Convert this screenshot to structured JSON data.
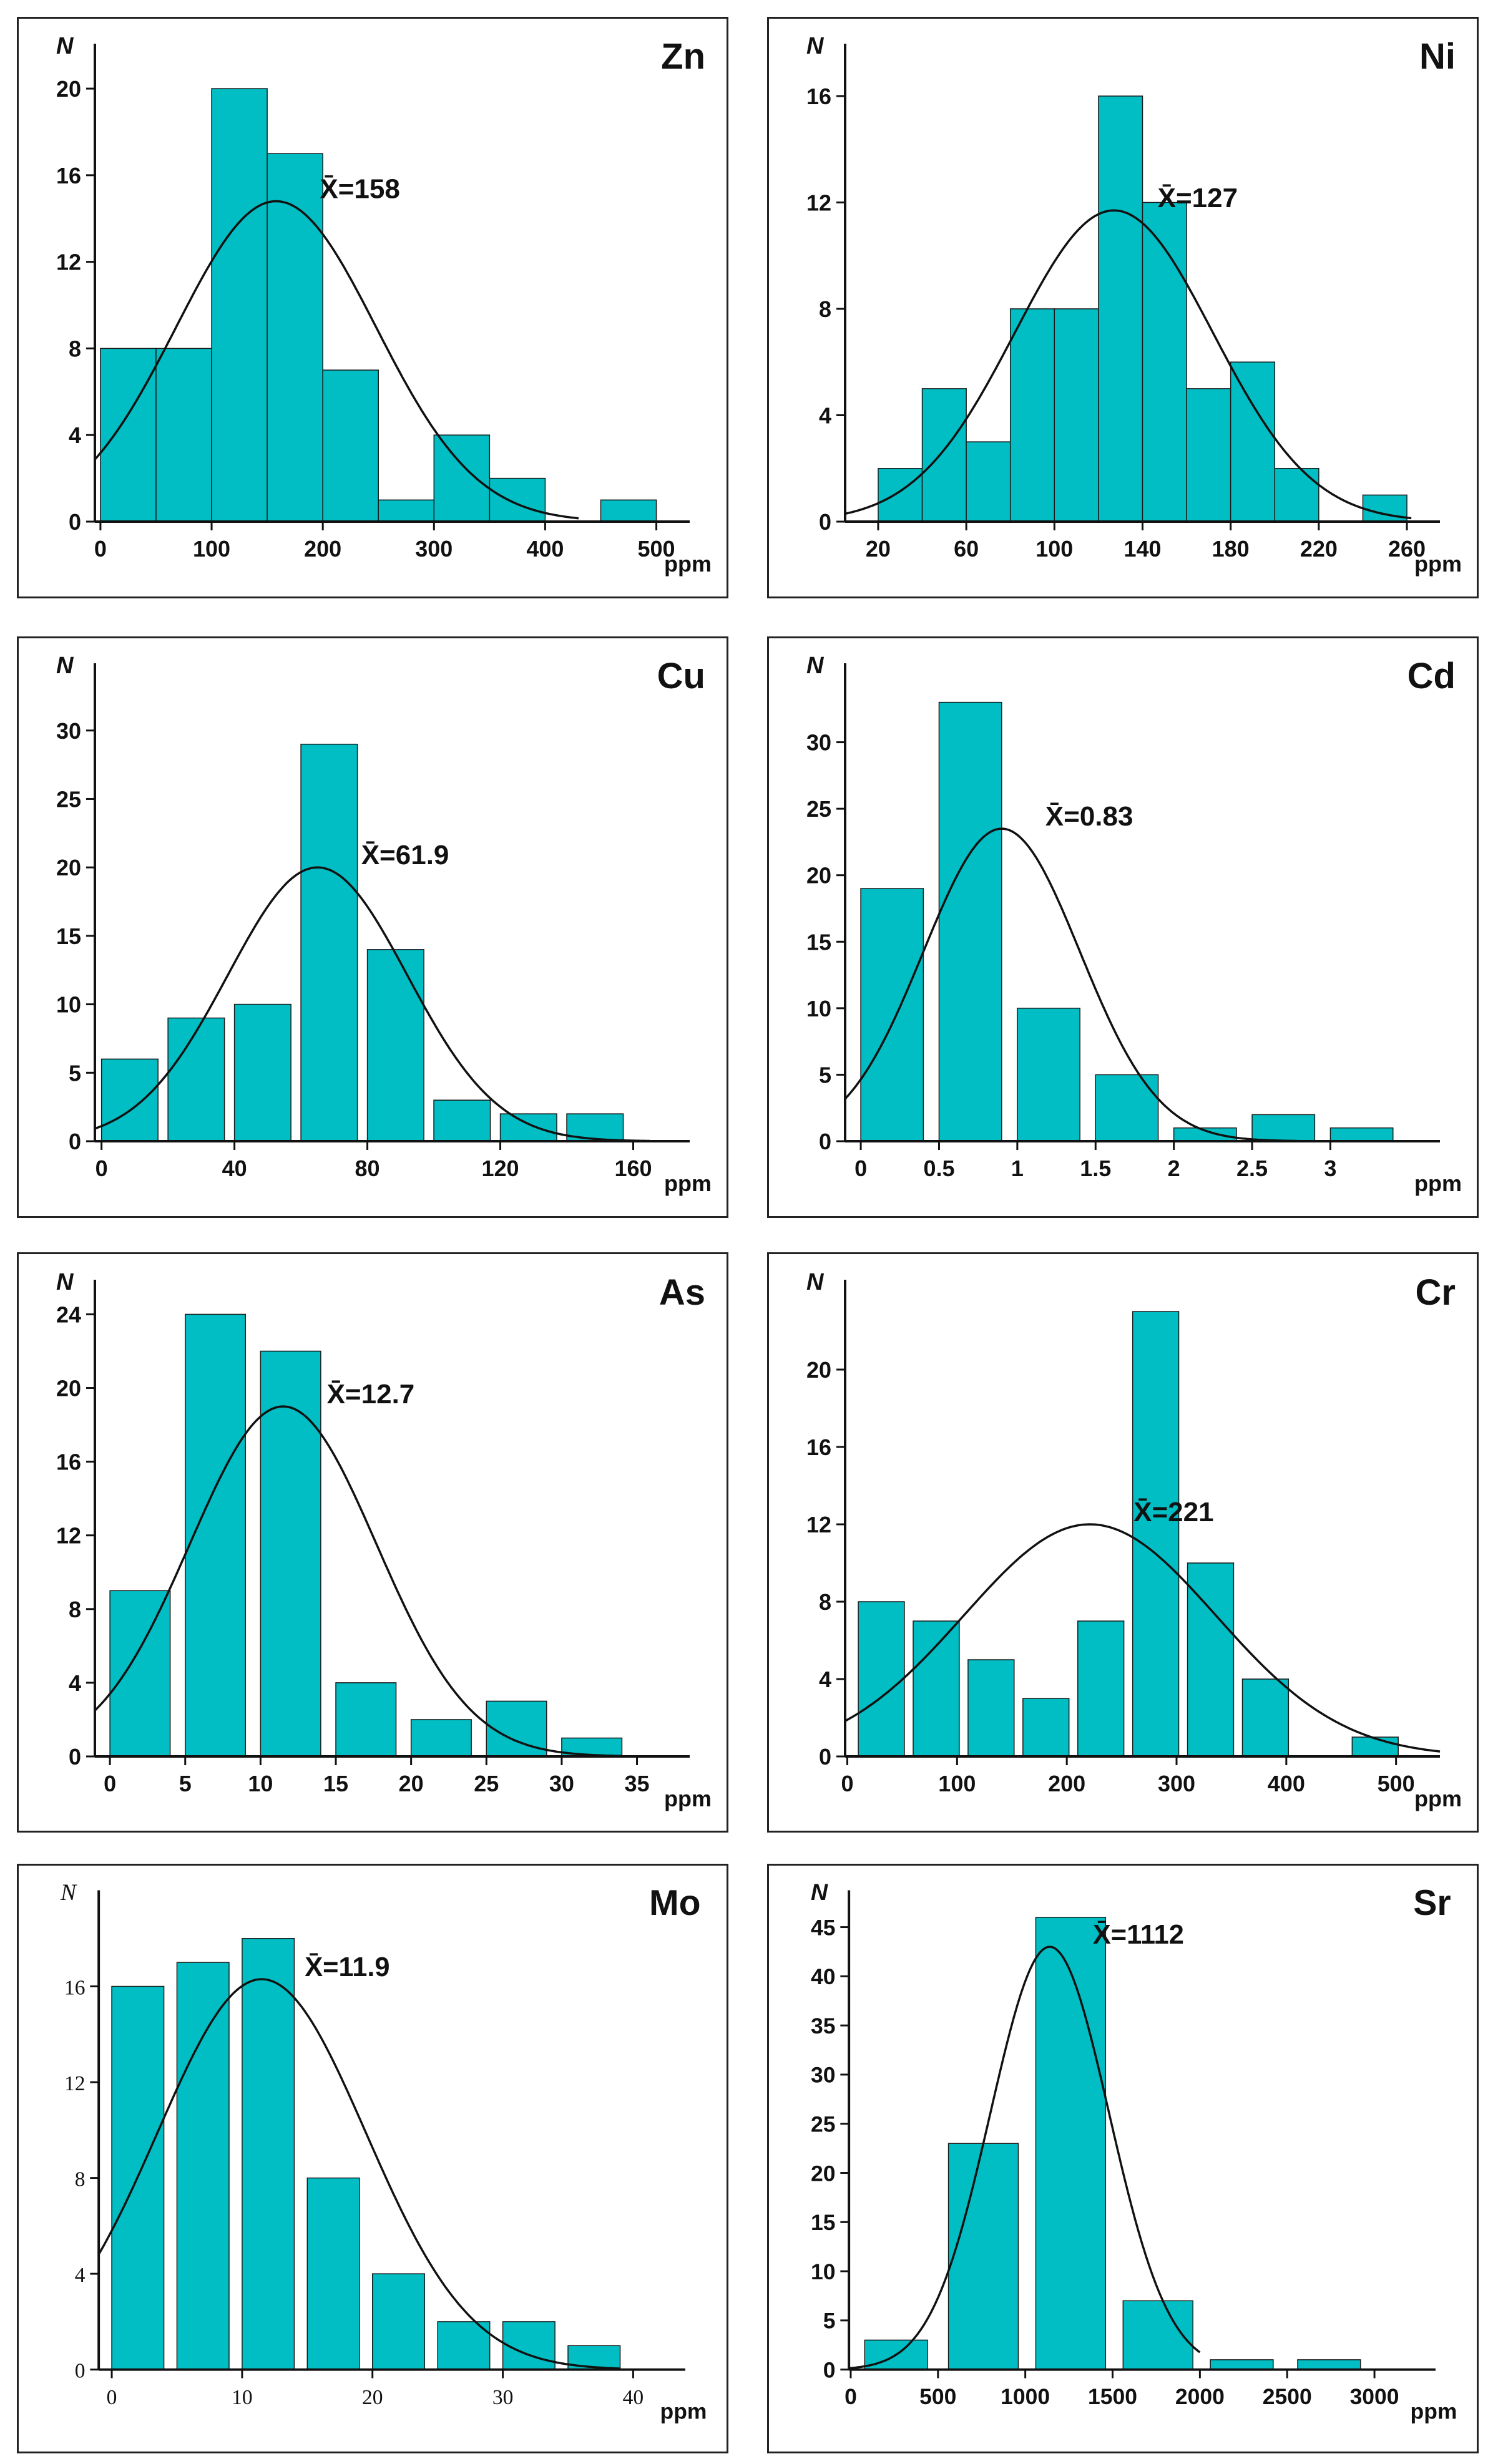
{
  "colors": {
    "bar": "#00BEC3",
    "bar_stroke": "#1a1a1a",
    "axis": "#111111",
    "curve": "#111111"
  },
  "chart_data": [
    {
      "type": "bar",
      "element": "Zn",
      "ylabel": "N",
      "xlabel": "ppm",
      "mean_label": "X̄=158",
      "xlim": [
        -5,
        530
      ],
      "ylim": [
        0,
        21.5
      ],
      "xticks": [
        0,
        100,
        200,
        300,
        400,
        500
      ],
      "yticks": [
        0,
        4,
        8,
        12,
        16,
        20
      ],
      "bins": [
        [
          0,
          50,
          8
        ],
        [
          50,
          100,
          8
        ],
        [
          100,
          150,
          20
        ],
        [
          150,
          200,
          17
        ],
        [
          200,
          250,
          7
        ],
        [
          250,
          300,
          1
        ],
        [
          300,
          350,
          4
        ],
        [
          350,
          400,
          2
        ],
        [
          450,
          500,
          1
        ]
      ],
      "curve": {
        "mean": 158,
        "sd": 90,
        "peak": 14.8,
        "range": [
          -5,
          430
        ]
      }
    },
    {
      "type": "bar",
      "element": "Ni",
      "ylabel": "N",
      "xlabel": "ppm",
      "mean_label": "X̄=127",
      "xlim": [
        5,
        275
      ],
      "ylim": [
        0,
        17.5
      ],
      "xticks": [
        20,
        60,
        100,
        140,
        180,
        220,
        260
      ],
      "yticks": [
        0,
        4,
        8,
        12,
        16
      ],
      "bins": [
        [
          20,
          40,
          2
        ],
        [
          40,
          60,
          5
        ],
        [
          60,
          80,
          3
        ],
        [
          80,
          100,
          8
        ],
        [
          100,
          120,
          8
        ],
        [
          120,
          140,
          16
        ],
        [
          140,
          160,
          12
        ],
        [
          160,
          180,
          5
        ],
        [
          180,
          200,
          6
        ],
        [
          200,
          220,
          2
        ],
        [
          240,
          260,
          1
        ]
      ],
      "curve": {
        "mean": 127,
        "sd": 45,
        "peak": 11.7,
        "range": [
          5,
          262
        ]
      }
    },
    {
      "type": "bar",
      "element": "Cu",
      "ylabel": "N",
      "xlabel": "ppm",
      "mean_label": "X̄=61.9",
      "xlim": [
        -2,
        177
      ],
      "ylim": [
        0,
        34
      ],
      "xticks": [
        0,
        40,
        80,
        120,
        160
      ],
      "yticks": [
        0,
        5,
        10,
        15,
        20,
        25,
        30
      ],
      "bins": [
        [
          0,
          17,
          6
        ],
        [
          20,
          37,
          9
        ],
        [
          40,
          57,
          10
        ],
        [
          60,
          77,
          29
        ],
        [
          80,
          97,
          14
        ],
        [
          100,
          117,
          3
        ],
        [
          120,
          137,
          2
        ],
        [
          140,
          157,
          2
        ]
      ],
      "curve": {
        "mean": 65,
        "sd": 27,
        "peak": 20,
        "range": [
          -2,
          165
        ]
      }
    },
    {
      "type": "bar",
      "element": "Cd",
      "ylabel": "N",
      "xlabel": "ppm",
      "mean_label": "X̄=0.83",
      "xlim": [
        -0.1,
        3.7
      ],
      "ylim": [
        0,
        35
      ],
      "xticks": [
        0,
        0.5,
        1,
        1.5,
        2,
        2.5,
        3
      ],
      "yticks": [
        0,
        5,
        10,
        15,
        20,
        25,
        30
      ],
      "xtick_labels": [
        "0",
        "0.5",
        "1",
        "1.5",
        "2",
        "2.5",
        "3"
      ],
      "bins": [
        [
          0,
          0.4,
          19
        ],
        [
          0.5,
          0.9,
          33
        ],
        [
          1.0,
          1.4,
          10
        ],
        [
          1.5,
          1.9,
          5
        ],
        [
          2.0,
          2.4,
          1
        ],
        [
          2.5,
          2.9,
          2
        ],
        [
          3.0,
          3.4,
          1
        ]
      ],
      "curve": {
        "mean": 0.9,
        "sd": 0.5,
        "peak": 23.5,
        "range": [
          -0.1,
          2.8
        ]
      }
    },
    {
      "type": "bar",
      "element": "As",
      "ylabel": "N",
      "xlabel": "ppm",
      "mean_label": "X̄=12.7",
      "xlim": [
        -1,
        38.5
      ],
      "ylim": [
        0,
        25.2
      ],
      "xticks": [
        0,
        5,
        10,
        15,
        20,
        25,
        30,
        35
      ],
      "yticks": [
        0,
        4,
        8,
        12,
        16,
        20,
        24
      ],
      "bins": [
        [
          0,
          4,
          9
        ],
        [
          5,
          9,
          24
        ],
        [
          10,
          14,
          22
        ],
        [
          15,
          19,
          4
        ],
        [
          20,
          24,
          2
        ],
        [
          25,
          29,
          3
        ],
        [
          30,
          34,
          1
        ]
      ],
      "curve": {
        "mean": 11.5,
        "sd": 6.2,
        "peak": 19,
        "range": [
          -1,
          34
        ]
      }
    },
    {
      "type": "bar",
      "element": "Cr",
      "ylabel": "N",
      "xlabel": "ppm",
      "mean_label": "X̄=221",
      "xlim": [
        -2,
        540
      ],
      "ylim": [
        0,
        24
      ],
      "xticks": [
        0,
        100,
        200,
        300,
        400,
        500
      ],
      "yticks": [
        0,
        4,
        8,
        12,
        16,
        20
      ],
      "bins": [
        [
          10,
          52,
          8
        ],
        [
          60,
          102,
          7
        ],
        [
          110,
          152,
          5
        ],
        [
          160,
          202,
          3
        ],
        [
          210,
          252,
          7
        ],
        [
          260,
          302,
          23
        ],
        [
          310,
          352,
          10
        ],
        [
          360,
          402,
          4
        ],
        [
          460,
          502,
          1
        ]
      ],
      "curve": {
        "mean": 221,
        "sd": 115,
        "peak": 12,
        "range": [
          -2,
          540
        ]
      }
    },
    {
      "type": "bar",
      "element": "Mo",
      "ylabel": "N",
      "xlabel": "ppm",
      "mean_label": "X̄=11.9",
      "serif_ticks": true,
      "xlim": [
        -1,
        44
      ],
      "ylim": [
        0,
        19.5
      ],
      "xticks": [
        0,
        10,
        20,
        30,
        40
      ],
      "yticks": [
        0,
        4,
        8,
        12,
        16
      ],
      "bins": [
        [
          0,
          4,
          16
        ],
        [
          5,
          9,
          17
        ],
        [
          10,
          14,
          18
        ],
        [
          15,
          19,
          8
        ],
        [
          20,
          24,
          4
        ],
        [
          25,
          29,
          2
        ],
        [
          30,
          34,
          2
        ],
        [
          35,
          39,
          1
        ]
      ],
      "curve": {
        "mean": 11.5,
        "sd": 8,
        "peak": 16.3,
        "range": [
          -1,
          39
        ]
      }
    },
    {
      "type": "bar",
      "element": "Sr",
      "ylabel": "N",
      "xlabel": "ppm",
      "mean_label": "X̄=1112",
      "xlim": [
        -10,
        3350
      ],
      "ylim": [
        0,
        47.5
      ],
      "xticks": [
        0,
        500,
        1000,
        1500,
        2000,
        2500,
        3000
      ],
      "yticks": [
        0,
        5,
        10,
        15,
        20,
        25,
        30,
        35,
        40,
        45
      ],
      "bins": [
        [
          80,
          440,
          3
        ],
        [
          560,
          960,
          23
        ],
        [
          1060,
          1460,
          46
        ],
        [
          1560,
          1960,
          7
        ],
        [
          2060,
          2420,
          1
        ],
        [
          2560,
          2920,
          1
        ]
      ],
      "curve": {
        "mean": 1140,
        "sd": 340,
        "peak": 43,
        "range": [
          -10,
          2000
        ]
      }
    }
  ]
}
